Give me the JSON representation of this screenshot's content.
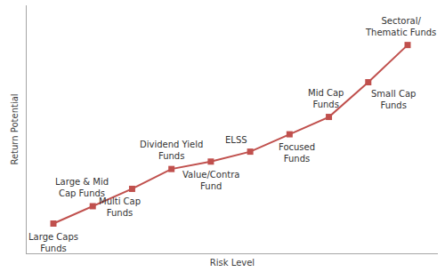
{
  "chart_data": {
    "type": "line",
    "categories": [
      "Large Caps\nFunds",
      "Large & Mid\nCap Funds",
      "Multi Cap\nFunds",
      "Dividend Yield\nFunds",
      "Value/Contra\nFund",
      "ELSS",
      "Focused\nFunds",
      "Mid Cap\nFunds",
      "Small Cap\nFunds",
      "Sectoral/\nThematic Funds"
    ],
    "values": [
      12,
      19,
      26,
      34,
      37,
      41,
      48,
      55,
      69,
      84
    ],
    "color": "#c0504d",
    "marker": "square",
    "xlabel": "Risk Level",
    "ylabel": "Return Potential",
    "ylim": [
      0,
      100
    ],
    "grid": false,
    "tick_labels": false
  }
}
